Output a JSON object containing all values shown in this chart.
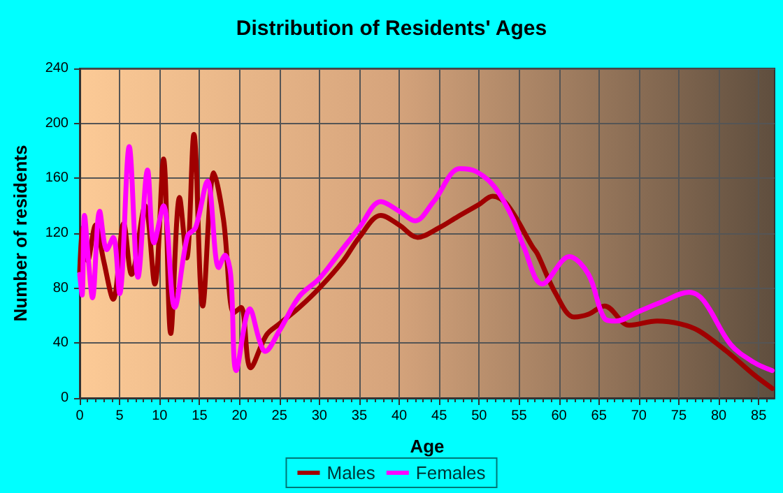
{
  "chart_data": {
    "type": "line",
    "title": "Distribution of Residents' Ages",
    "xlabel": "Age",
    "ylabel": "Number of residents",
    "xlim": [
      0,
      87
    ],
    "xticks": [
      0,
      5,
      10,
      15,
      20,
      25,
      30,
      35,
      40,
      45,
      50,
      55,
      60,
      65,
      70,
      75,
      80,
      85
    ],
    "ylim": [
      0,
      240
    ],
    "yticks": [
      0,
      40,
      80,
      120,
      160,
      200,
      240
    ],
    "grid": true,
    "legend": "bottom",
    "marker": "none",
    "line_style": "solid",
    "series": [
      {
        "name": "Males",
        "color": "#a00000",
        "x": [
          0,
          0.4,
          1,
          2,
          3,
          4.2,
          5.5,
          6.5,
          8.2,
          9.4,
          10.5,
          11.4,
          12.5,
          13.4,
          14.3,
          15.4,
          16.8,
          18,
          19.3,
          20.2,
          21.4,
          23.4,
          25,
          27.5,
          30,
          33,
          35,
          37.7,
          40,
          42.3,
          45,
          47.3,
          50,
          51.7,
          53.5,
          56.7,
          57.3,
          59.6,
          61.9,
          63.7,
          65.7,
          68.8,
          72.3,
          75.2,
          77.5,
          81,
          84.4,
          86.7
        ],
        "values": [
          92,
          124,
          100,
          126,
          100,
          72,
          127,
          90,
          140,
          83,
          174,
          47,
          146,
          102,
          192,
          67,
          164,
          130,
          62,
          66,
          22,
          46,
          54,
          66,
          80,
          100,
          117,
          133,
          126,
          117,
          124,
          132,
          141,
          147,
          141,
          110,
          105,
          76,
          59,
          61,
          67,
          53,
          56,
          54,
          49,
          34,
          17,
          7
        ]
      },
      {
        "name": "Females",
        "color": "#ff00ff",
        "x": [
          0,
          0.3,
          0.6,
          1.1,
          1.6,
          2.5,
          3.4,
          4.2,
          5,
          6.2,
          7.3,
          8.5,
          9.3,
          10.5,
          11.9,
          13.5,
          14.5,
          16,
          17.4,
          18.2,
          18.9,
          19.6,
          21.3,
          22.5,
          23.2,
          25,
          27.5,
          30,
          32.3,
          35,
          37.7,
          40,
          42,
          44.3,
          47.6,
          49.6,
          51.9,
          54.2,
          55.6,
          57.9,
          61.3,
          63.7,
          65.7,
          67.1,
          70,
          72.9,
          76.3,
          78.1,
          81.5,
          84.4,
          86.7
        ],
        "values": [
          90,
          75,
          133,
          100,
          73,
          136,
          108,
          117,
          76,
          183,
          88,
          166,
          113,
          140,
          66,
          118,
          124,
          158,
          95,
          104,
          90,
          20,
          65,
          42,
          34,
          49,
          74,
          87,
          104,
          124,
          143,
          136,
          129,
          143,
          167,
          165,
          154,
          131,
          110,
          83,
          103,
          90,
          58,
          56,
          63,
          70,
          77,
          71,
          39,
          26,
          20
        ]
      }
    ]
  }
}
